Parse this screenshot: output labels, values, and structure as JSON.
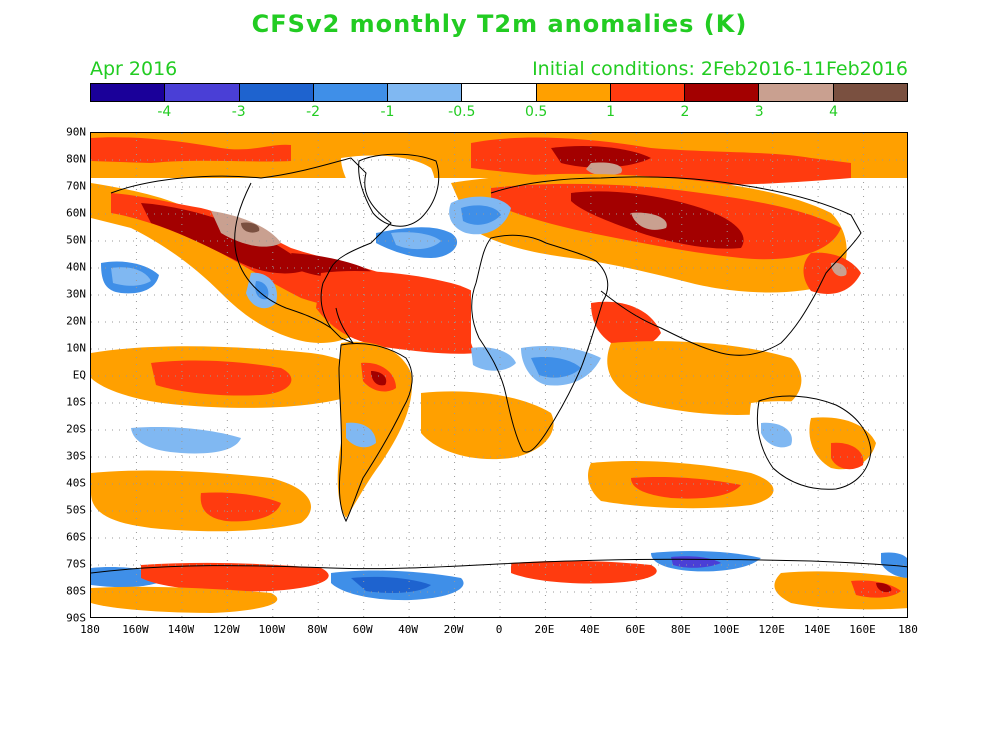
{
  "header": {
    "title": "CFSv2 monthly T2m anomalies (K)",
    "valid_month": "Apr 2016",
    "initial_conditions": "Initial conditions: 2Feb2016-11Feb2016"
  },
  "colorbar": {
    "colors": [
      "#1a0099",
      "#4a3fd6",
      "#1e63cf",
      "#3f8fe8",
      "#80b8f2",
      "#ffffff",
      "#ffa000",
      "#ff3b0f",
      "#a30000",
      "#c9a090",
      "#7a5040"
    ],
    "labels": [
      "-4",
      "-3",
      "-2",
      "-1",
      "-0.5",
      "0.5",
      "1",
      "2",
      "3",
      "4"
    ]
  },
  "axes": {
    "lat_labels": [
      "90N",
      "80N",
      "70N",
      "60N",
      "50N",
      "40N",
      "30N",
      "20N",
      "10N",
      "EQ",
      "10S",
      "20S",
      "30S",
      "40S",
      "50S",
      "60S",
      "70S",
      "80S",
      "90S"
    ],
    "lon_labels": [
      "180",
      "160W",
      "140W",
      "120W",
      "100W",
      "80W",
      "60W",
      "40W",
      "20W",
      "0",
      "20E",
      "40E",
      "60E",
      "80E",
      "100E",
      "120E",
      "140E",
      "160E",
      "180"
    ]
  },
  "map": {
    "projection": "equirectangular",
    "grid": "dotted, 10 degree",
    "coastlines": "black outline"
  }
}
